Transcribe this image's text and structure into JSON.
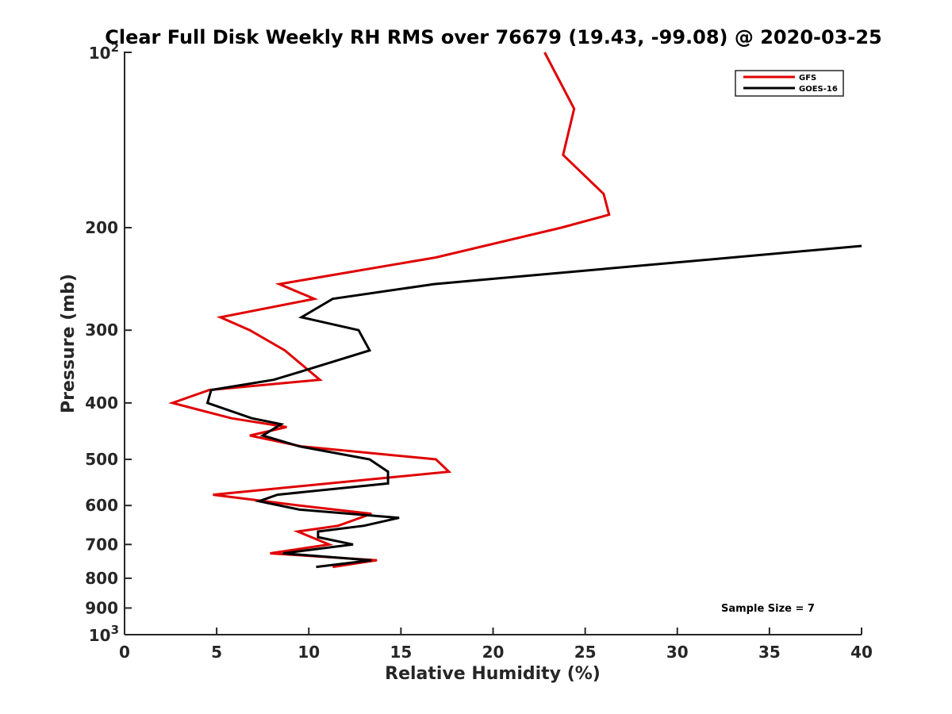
{
  "chart_data": {
    "type": "line",
    "title": "Clear Full Disk Weekly RH RMS over 76679 (19.43, -99.08) @ 2020-03-25",
    "xlabel": "Relative Humidity (%)",
    "ylabel": "Pressure (mb)",
    "xlim": [
      0,
      40
    ],
    "ylim": [
      100,
      1000
    ],
    "y_scale": "log",
    "y_reversed": true,
    "x_ticks": [
      "0",
      "5",
      "10",
      "15",
      "20",
      "25",
      "30",
      "35",
      "40"
    ],
    "y_ticks": [
      {
        "value": 100,
        "base": "10",
        "exp": "2"
      },
      {
        "value": 200,
        "text": "200"
      },
      {
        "value": 300,
        "text": "300"
      },
      {
        "value": 400,
        "text": "400"
      },
      {
        "value": 500,
        "text": "500"
      },
      {
        "value": 600,
        "text": "600"
      },
      {
        "value": 700,
        "text": "700"
      },
      {
        "value": 800,
        "text": "800"
      },
      {
        "value": 900,
        "text": "900"
      },
      {
        "value": 1000,
        "base": "10",
        "exp": "3"
      }
    ],
    "grid": false,
    "legend_position": "top-right",
    "annotation": "Sample Size = 7",
    "series": [
      {
        "name": "GFS",
        "color": "#e00000",
        "points": [
          [
            22.8,
            100
          ],
          [
            24.4,
            125
          ],
          [
            23.8,
            150
          ],
          [
            26.0,
            175
          ],
          [
            26.3,
            190
          ],
          [
            23.7,
            200
          ],
          [
            16.9,
            225
          ],
          [
            8.4,
            250
          ],
          [
            10.3,
            265
          ],
          [
            5.2,
            285
          ],
          [
            6.8,
            300
          ],
          [
            8.7,
            325
          ],
          [
            10.6,
            365
          ],
          [
            4.6,
            380
          ],
          [
            2.6,
            400
          ],
          [
            5.8,
            425
          ],
          [
            8.8,
            440
          ],
          [
            6.8,
            455
          ],
          [
            9.6,
            475
          ],
          [
            16.9,
            500
          ],
          [
            17.6,
            525
          ],
          [
            4.8,
            575
          ],
          [
            9.5,
            600
          ],
          [
            13.4,
            620
          ],
          [
            11.6,
            650
          ],
          [
            9.4,
            665
          ],
          [
            11.1,
            700
          ],
          [
            7.9,
            725
          ],
          [
            13.7,
            745
          ],
          [
            11.3,
            765
          ]
        ]
      },
      {
        "name": "GOES-16",
        "color": "#000000",
        "points": [
          [
            40.0,
            215
          ],
          [
            16.8,
            250
          ],
          [
            11.3,
            265
          ],
          [
            9.6,
            285
          ],
          [
            12.7,
            300
          ],
          [
            13.3,
            325
          ],
          [
            10.0,
            350
          ],
          [
            8.1,
            365
          ],
          [
            4.7,
            380
          ],
          [
            4.5,
            400
          ],
          [
            6.9,
            425
          ],
          [
            8.5,
            435
          ],
          [
            7.5,
            455
          ],
          [
            9.5,
            475
          ],
          [
            13.3,
            500
          ],
          [
            14.3,
            525
          ],
          [
            14.3,
            550
          ],
          [
            8.3,
            575
          ],
          [
            7.3,
            590
          ],
          [
            9.5,
            610
          ],
          [
            14.9,
            630
          ],
          [
            13.0,
            650
          ],
          [
            10.5,
            665
          ],
          [
            10.5,
            680
          ],
          [
            12.4,
            700
          ],
          [
            8.6,
            725
          ],
          [
            13.4,
            745
          ],
          [
            10.4,
            765
          ]
        ]
      }
    ]
  }
}
